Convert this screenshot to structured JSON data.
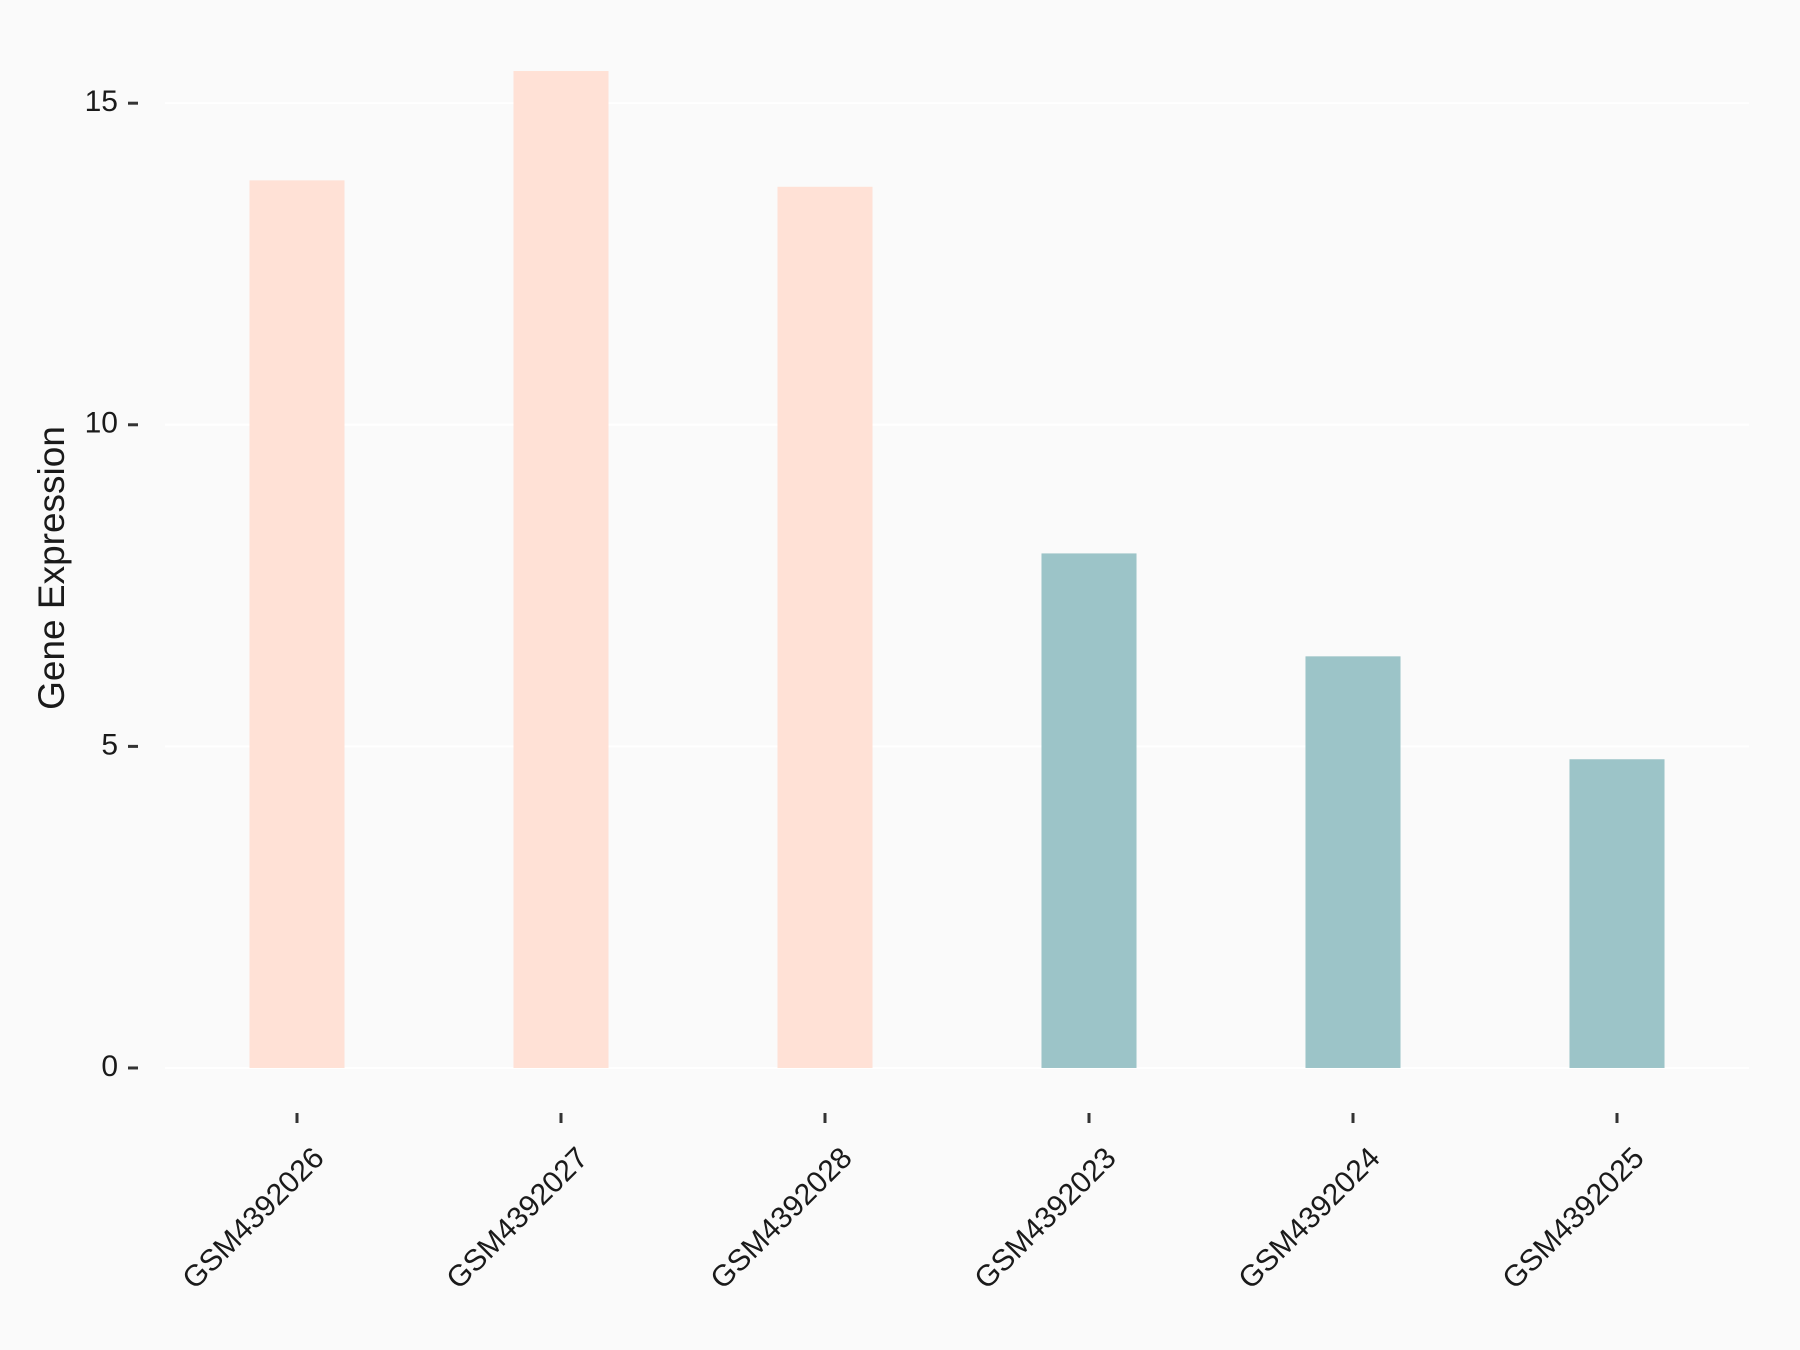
{
  "chart_data": {
    "type": "bar",
    "y_label": "Gene Expression",
    "categories": [
      "GSM4392026",
      "GSM4392027",
      "GSM4392028",
      "GSM4392023",
      "GSM4392024",
      "GSM4392025"
    ],
    "values": [
      13.8,
      15.5,
      13.7,
      8.0,
      6.4,
      4.8
    ],
    "colors": [
      "#ffe1d6",
      "#ffe1d6",
      "#ffe1d6",
      "#9cc4c8",
      "#9cc4c8",
      "#9cc4c8"
    ],
    "ylim": [
      -0.7,
      16.2
    ],
    "yticks": [
      0,
      5,
      10,
      15
    ],
    "grid": true
  }
}
